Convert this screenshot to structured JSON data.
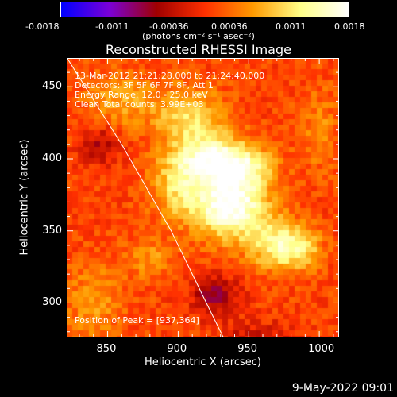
{
  "chart_data": {
    "type": "heatmap",
    "title": "Reconstructed RHESSI Image",
    "xlabel": "Heliocentric X (arcsec)",
    "ylabel": "Heliocentric Y (arcsec)",
    "xlim": [
      821,
      1014
    ],
    "ylim": [
      276,
      470
    ],
    "x_ticks": [
      850,
      900,
      950,
      1000
    ],
    "y_ticks": [
      300,
      350,
      400,
      450
    ],
    "colorbar": {
      "range": [
        -0.0018,
        0.0018
      ],
      "tick_labels": [
        "-0.0018",
        "-0.0011",
        "-0.00036",
        "0.00036",
        "0.0011",
        "0.0018"
      ],
      "unit": "(photons cm⁻² s⁻¹ asec⁻²)",
      "colors": [
        "#0000ff",
        "#7a00d8",
        "#a00000",
        "#ff3000",
        "#ff9a00",
        "#ffff88",
        "#ffffff"
      ]
    },
    "info_lines": [
      "13-Mar-2012 21:21:28.000 to 21:24:40.000",
      "Detectors: 3F 5F 6F 7F 8F, Att 1",
      "Energy Range: 12.0 - 25.0 keV",
      "Clean    Total counts: 3.99E+03"
    ],
    "peak_label": "Position of Peak = [937,364]",
    "peak": {
      "x": 937,
      "y": 364
    },
    "limb_curve": [
      [
        818,
        475
      ],
      [
        860,
        410
      ],
      [
        895,
        350
      ],
      [
        920,
        300
      ],
      [
        932,
        276
      ]
    ],
    "sources": [
      {
        "x": 937,
        "y": 368,
        "value": 0.0018,
        "sx": 18,
        "sy": 16
      },
      {
        "x": 923,
        "y": 400,
        "value": 0.0014,
        "sx": 18,
        "sy": 12
      },
      {
        "x": 908,
        "y": 430,
        "value": 0.0009,
        "sx": 16,
        "sy": 14
      },
      {
        "x": 900,
        "y": 380,
        "value": 0.0008,
        "sx": 14,
        "sy": 16
      },
      {
        "x": 970,
        "y": 340,
        "value": 0.0011,
        "sx": 14,
        "sy": 12
      },
      {
        "x": 988,
        "y": 338,
        "value": 0.0007,
        "sx": 10,
        "sy": 10
      },
      {
        "x": 950,
        "y": 395,
        "value": 0.0008,
        "sx": 14,
        "sy": 10
      },
      {
        "x": 860,
        "y": 440,
        "value": 0.0006,
        "sx": 18,
        "sy": 14
      },
      {
        "x": 840,
        "y": 300,
        "value": 0.0005,
        "sx": 14,
        "sy": 20
      },
      {
        "x": 1000,
        "y": 420,
        "value": 0.0004,
        "sx": 10,
        "sy": 20
      },
      {
        "x": 880,
        "y": 330,
        "value": 0.0005,
        "sx": 12,
        "sy": 10
      },
      {
        "x": 845,
        "y": 410,
        "value": -0.0006,
        "sx": 10,
        "sy": 10
      },
      {
        "x": 926,
        "y": 305,
        "value": -0.0008,
        "sx": 12,
        "sy": 10
      },
      {
        "x": 958,
        "y": 275,
        "value": -0.0005,
        "sx": 18,
        "sy": 8
      }
    ],
    "background_value": 0.0001
  },
  "footer": {
    "date": "9-May-2022 09:01"
  }
}
